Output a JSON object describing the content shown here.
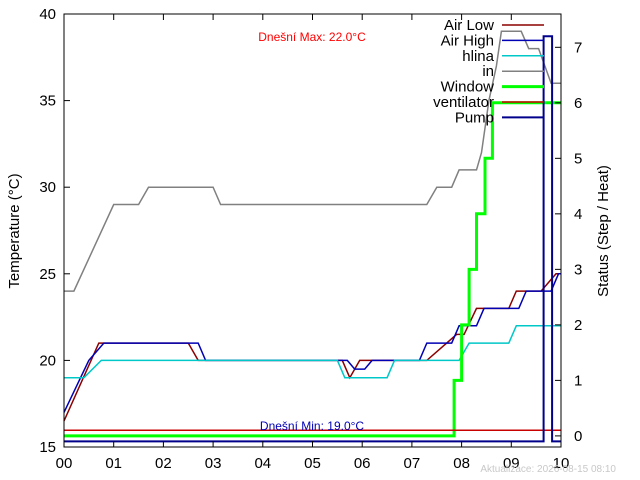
{
  "chart_data": {
    "type": "line",
    "ylabel": "Temperature (°C)",
    "y2label": "Status (Step / Heat)",
    "x_ticks": [
      "00",
      "01",
      "02",
      "03",
      "04",
      "05",
      "06",
      "07",
      "08",
      "09",
      "10"
    ],
    "x_range_hours": [
      0,
      10
    ],
    "ylim": [
      15,
      40
    ],
    "y_ticks": [
      15,
      20,
      25,
      30,
      35,
      40
    ],
    "y2lim": [
      -0.2,
      7.6
    ],
    "y2_ticks": [
      0,
      1,
      2,
      3,
      4,
      5,
      6,
      7
    ],
    "grid": false,
    "legend_placement": "top-right",
    "annotations": {
      "max_text": "Dnešní Max: 22.0°C",
      "min_text": "Dnešní Min: 19.0°C",
      "footer": "Aktualizace: 2026-08-15 08:10"
    },
    "colors": {
      "air_low": "#8b0000",
      "air_high": "#0000b4",
      "hlina": "#00c8c8",
      "in": "#808080",
      "window": "#00ff00",
      "ventilator": "#c80000",
      "pump": "#00008b",
      "max_text": "#ff0000",
      "min_text": "#0000b4"
    },
    "series": [
      {
        "name": "Air Low",
        "axis": "y1",
        "color": "#8b0000",
        "width": 1.5,
        "points": [
          [
            0,
            16.5
          ],
          [
            0.7,
            21
          ],
          [
            2.5,
            21
          ],
          [
            2.7,
            20
          ],
          [
            5.6,
            20
          ],
          [
            5.75,
            19
          ],
          [
            5.95,
            20
          ],
          [
            7.3,
            20
          ],
          [
            7.9,
            21.5
          ],
          [
            8.05,
            21.5
          ],
          [
            8.3,
            23
          ],
          [
            8.95,
            23
          ],
          [
            9.1,
            24
          ],
          [
            9.6,
            24
          ],
          [
            9.9,
            25
          ],
          [
            10,
            25
          ]
        ]
      },
      {
        "name": "Air High",
        "axis": "y1",
        "color": "#0000b4",
        "width": 1.5,
        "points": [
          [
            0,
            17
          ],
          [
            0.25,
            18.5
          ],
          [
            0.5,
            20
          ],
          [
            0.8,
            21
          ],
          [
            2.7,
            21
          ],
          [
            2.85,
            20
          ],
          [
            5.55,
            20
          ],
          [
            5.7,
            20
          ],
          [
            5.85,
            19.5
          ],
          [
            6.05,
            19.5
          ],
          [
            6.2,
            20
          ],
          [
            7.15,
            20
          ],
          [
            7.3,
            21
          ],
          [
            7.8,
            21
          ],
          [
            7.95,
            22
          ],
          [
            8.3,
            22
          ],
          [
            8.45,
            23
          ],
          [
            9.15,
            23
          ],
          [
            9.3,
            24
          ],
          [
            9.8,
            24
          ],
          [
            9.95,
            25
          ],
          [
            10,
            25
          ]
        ]
      },
      {
        "name": "hlina",
        "axis": "y1",
        "color": "#00c8c8",
        "width": 1.5,
        "points": [
          [
            0,
            19
          ],
          [
            0.4,
            19
          ],
          [
            0.75,
            20
          ],
          [
            5.5,
            20
          ],
          [
            5.65,
            19
          ],
          [
            6.5,
            19
          ],
          [
            6.65,
            20
          ],
          [
            7.95,
            20
          ],
          [
            8.15,
            21
          ],
          [
            8.95,
            21
          ],
          [
            9.1,
            22
          ],
          [
            10,
            22
          ]
        ]
      },
      {
        "name": "in",
        "axis": "y1",
        "color": "#808080",
        "width": 1.5,
        "points": [
          [
            0,
            24
          ],
          [
            0.2,
            24
          ],
          [
            1,
            29
          ],
          [
            1.5,
            29
          ],
          [
            1.7,
            30
          ],
          [
            3,
            30
          ],
          [
            3.15,
            29
          ],
          [
            7.3,
            29
          ],
          [
            7.5,
            30
          ],
          [
            7.8,
            30
          ],
          [
            7.95,
            31
          ],
          [
            8.3,
            31
          ],
          [
            8.4,
            32
          ],
          [
            8.55,
            35
          ],
          [
            8.7,
            37
          ],
          [
            8.8,
            39
          ],
          [
            9.2,
            39
          ],
          [
            9.35,
            38
          ],
          [
            9.55,
            38
          ],
          [
            9.8,
            36
          ],
          [
            10,
            36
          ]
        ]
      },
      {
        "name": "Window",
        "axis": "y2",
        "step": true,
        "color": "#00ff00",
        "width": 3,
        "points": [
          [
            0,
            0
          ],
          [
            7.85,
            0
          ],
          [
            7.85,
            1
          ],
          [
            8.0,
            1
          ],
          [
            8.0,
            2
          ],
          [
            8.15,
            2
          ],
          [
            8.15,
            3
          ],
          [
            8.3,
            3
          ],
          [
            8.3,
            4
          ],
          [
            8.47,
            4
          ],
          [
            8.47,
            5
          ],
          [
            8.62,
            5
          ],
          [
            8.62,
            6
          ],
          [
            10,
            6
          ]
        ]
      },
      {
        "name": "ventilator",
        "axis": "y2",
        "step": true,
        "color": "#c80000",
        "width": 1.5,
        "points": [
          [
            0,
            0.1
          ],
          [
            10,
            0.1
          ]
        ]
      },
      {
        "name": "Pump",
        "axis": "y2",
        "step": true,
        "color": "#00008b",
        "width": 2,
        "points": [
          [
            0,
            -0.1
          ],
          [
            9.65,
            -0.1
          ],
          [
            9.65,
            7.2
          ],
          [
            9.82,
            7.2
          ],
          [
            9.82,
            -0.1
          ],
          [
            10,
            -0.1
          ]
        ]
      }
    ]
  }
}
